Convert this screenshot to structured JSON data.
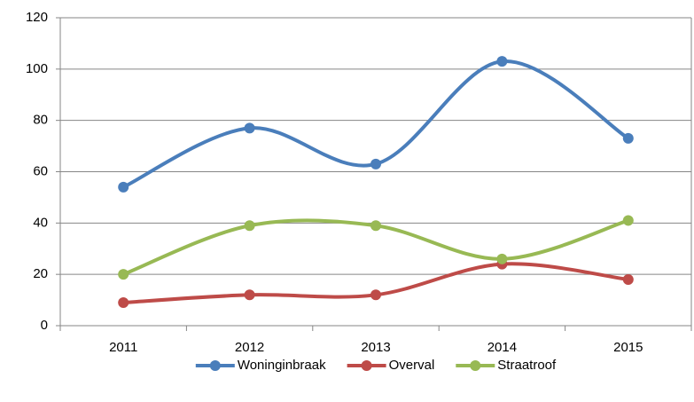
{
  "chart_data": {
    "type": "line",
    "smooth": true,
    "grid": true,
    "legend": "bottom",
    "categories": [
      "2011",
      "2012",
      "2013",
      "2014",
      "2015"
    ],
    "series": [
      {
        "name": "Woninginbraak",
        "color": "#4a7ebb",
        "values": [
          54,
          77,
          63,
          103,
          73
        ]
      },
      {
        "name": "Overval",
        "color": "#be4b48",
        "values": [
          9,
          12,
          12,
          24,
          18
        ]
      },
      {
        "name": "Straatroof",
        "color": "#98b954",
        "values": [
          20,
          39,
          39,
          26,
          41
        ]
      }
    ],
    "ylim": [
      0,
      120
    ],
    "yticks": [
      0,
      20,
      40,
      60,
      80,
      100,
      120
    ]
  }
}
